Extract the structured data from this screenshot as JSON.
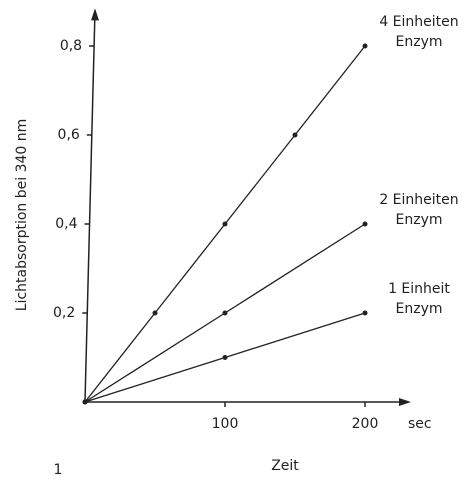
{
  "chart_data": {
    "type": "line",
    "x_label": "Zeit",
    "x_unit": "sec",
    "y_label": "Lichtabsorption bei 340 nm",
    "figure_number": "1",
    "xlim": [
      0,
      230
    ],
    "ylim": [
      0,
      0.88
    ],
    "xticks": [
      100,
      200
    ],
    "yticks": [
      {
        "value": 0.2,
        "label": "0,2"
      },
      {
        "value": 0.4,
        "label": "0,4"
      },
      {
        "value": 0.6,
        "label": "0,6"
      },
      {
        "value": 0.8,
        "label": "0,8"
      }
    ],
    "series": [
      {
        "name": "4 Einheiten Enzym",
        "color": "#222222",
        "x": [
          0,
          50,
          100,
          150,
          200
        ],
        "values": [
          0,
          0.2,
          0.4,
          0.6,
          0.8
        ]
      },
      {
        "name": "2 Einheiten Enzym",
        "color": "#222222",
        "x": [
          0,
          100,
          200
        ],
        "values": [
          0,
          0.2,
          0.4
        ]
      },
      {
        "name": "1 Einheit Enzym",
        "color": "#222222",
        "x": [
          0,
          100,
          200
        ],
        "values": [
          0,
          0.1,
          0.2
        ]
      }
    ]
  }
}
